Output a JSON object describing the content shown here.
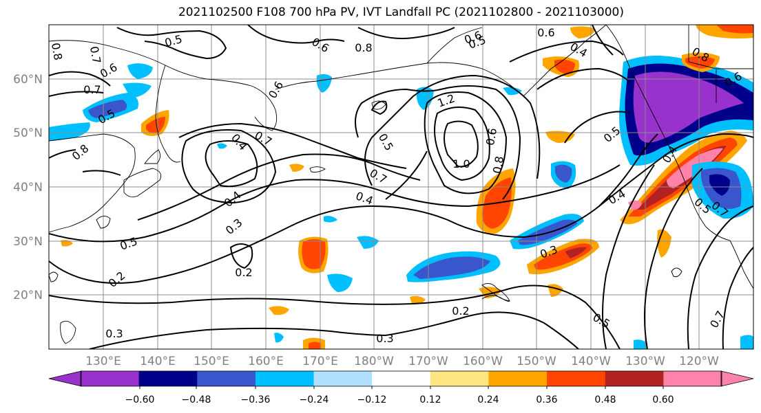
{
  "figure": {
    "title": "2021102500 F108 700 hPa PV, IVT Landfall PC (2021102800 - 2021103000)"
  },
  "map": {
    "lat_labels": [
      "60°N",
      "50°N",
      "40°N",
      "30°N",
      "20°N"
    ],
    "lon_labels": [
      "130°E",
      "140°E",
      "150°E",
      "160°E",
      "170°E",
      "180°W",
      "170°W",
      "160°W",
      "150°W",
      "140°W",
      "130°W",
      "120°W"
    ],
    "contour_labels": [
      "0.5",
      "0.6",
      "0.8",
      "0.7",
      "0.6",
      "0.8",
      "0.7",
      "0.5",
      "0.6",
      "0.7",
      "0.4",
      "0.6",
      "0.8",
      "0.5",
      "0.4",
      "0.5",
      "0.7",
      "0.4",
      "0.4",
      "0.3",
      "0.5",
      "0.2",
      "0.2",
      "0.3",
      "0.3",
      "0.2",
      "0.3",
      "0.5",
      "0.7",
      "1.2",
      "1.0",
      "0.8",
      "0.6",
      "0.4",
      "0.5",
      "0.7",
      "0.4",
      "0.5",
      "0.6",
      "0.6",
      "0.8"
    ]
  },
  "colorbar": {
    "colors": [
      "#9932cc",
      "#00008b",
      "#3a56cc",
      "#00bfff",
      "#b0e2ff",
      "#ffffff",
      "#ffe680",
      "#ffa500",
      "#ff4500",
      "#b22222",
      "#ff82ab"
    ],
    "tick_labels": [
      "−0.60",
      "−0.48",
      "−0.36",
      "−0.24",
      "−0.12",
      "0.12",
      "0.24",
      "0.36",
      "0.48",
      "0.60"
    ]
  }
}
